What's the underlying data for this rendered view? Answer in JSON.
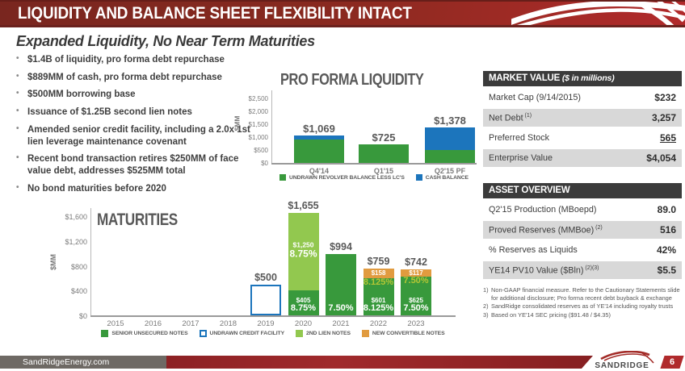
{
  "slide": {
    "title": "LIQUIDITY AND BALANCE SHEET FLEXIBILITY INTACT",
    "subtitle": "Expanded Liquidity, No Near Term Maturities",
    "footer_url": "SandRidgeEnergy.com",
    "logo_text": "SandRidge",
    "page_number": "6"
  },
  "colors": {
    "senior_green": "#38993c",
    "second_lien_green": "#92c84f",
    "cash_blue": "#1c75bc",
    "convertible_orange": "#e19b3f",
    "rate_yellow": "#b5c635",
    "banner_maroon": "#7c2824",
    "accent_red": "#b12a2b",
    "outline_blue": "#1c75bc"
  },
  "bullets": [
    "$1.4B of liquidity, pro forma debt repurchase",
    "$889MM of cash, pro forma debt repurchase",
    "$500MM borrowing base",
    "Issuance of $1.25B second lien notes",
    "Amended senior credit facility, including a 2.0x 1st lien leverage maintenance covenant",
    "Recent bond transaction retires $250MM of face value debt, addresses $525MM total",
    "No bond maturities before 2020"
  ],
  "chart_data": [
    {
      "type": "bar",
      "stacked": true,
      "title": "PRO FORMA LIQUIDITY",
      "ylabel": "$MM",
      "ylim": [
        0,
        2500
      ],
      "yticks": [
        "$0",
        "$500",
        "$1,000",
        "$1,500",
        "$2,000",
        "$2,500"
      ],
      "grid": false,
      "legend_position": "bottom",
      "categories": [
        "Q4'14",
        "Q1'15",
        "Q2'15 PF"
      ],
      "totals": [
        "$1,069",
        "$725",
        "$1,378"
      ],
      "series": [
        {
          "name": "UNDRAWN REVOLVER BALANCE LESS LC'S",
          "color": "#38993c",
          "values": [
            919,
            725,
            489
          ]
        },
        {
          "name": "CASH BALANCE",
          "color": "#1c75bc",
          "values": [
            150,
            0,
            889
          ]
        }
      ]
    },
    {
      "type": "bar",
      "stacked": true,
      "title": "MATURITIES",
      "ylabel": "$MM",
      "ylim": [
        0,
        1600
      ],
      "yticks": [
        "$0",
        "$400",
        "$800",
        "$1,200",
        "$1,600"
      ],
      "grid": false,
      "legend_position": "bottom",
      "categories": [
        "2015",
        "2016",
        "2017",
        "2018",
        "2019",
        "2020",
        "2021",
        "2022",
        "2023"
      ],
      "legend": [
        {
          "name": "SENIOR UNSECURED NOTES",
          "color": "#38993c",
          "style": "fill"
        },
        {
          "name": "UNDRAWN CREDIT FACILITY",
          "color": "#1c75bc",
          "style": "outline"
        },
        {
          "name": "2ND LIEN NOTES",
          "color": "#92c84f",
          "style": "fill"
        },
        {
          "name": "NEW CONVERTIBLE NOTES",
          "color": "#e19b3f",
          "style": "fill"
        }
      ],
      "bars": [
        {
          "year": "2019",
          "total_label": "$500",
          "segments": [
            {
              "series": "UNDRAWN CREDIT FACILITY",
              "value": 500,
              "style": "outline"
            }
          ]
        },
        {
          "year": "2020",
          "total_label": "$1,655",
          "segments": [
            {
              "series": "SENIOR UNSECURED NOTES",
              "value": 405,
              "label": "$405",
              "rate": "8.75%"
            },
            {
              "series": "2ND LIEN NOTES",
              "value": 1250,
              "label": "$1,250",
              "rate": "8.75%"
            }
          ]
        },
        {
          "year": "2021",
          "total_label": "$994",
          "segments": [
            {
              "series": "SENIOR UNSECURED NOTES",
              "value": 994,
              "rate": "7.50%"
            }
          ]
        },
        {
          "year": "2022",
          "total_label": "$759",
          "segments": [
            {
              "series": "SENIOR UNSECURED NOTES",
              "value": 601,
              "label": "$601",
              "rate": "8.125%"
            },
            {
              "series": "NEW CONVERTIBLE NOTES",
              "value": 158,
              "label": "$158",
              "rate": "8.125%"
            }
          ]
        },
        {
          "year": "2023",
          "total_label": "$742",
          "segments": [
            {
              "series": "SENIOR UNSECURED NOTES",
              "value": 625,
              "label": "$625",
              "rate": "7.50%"
            },
            {
              "series": "NEW CONVERTIBLE NOTES",
              "value": 117,
              "label": "$117",
              "rate": "7.50%"
            }
          ]
        }
      ]
    }
  ],
  "tables": {
    "market_value": {
      "title": "MARKET VALUE",
      "title_note": "($ in millions)",
      "rows": [
        {
          "label": "Market Cap (9/14/2015)",
          "value": "$232"
        },
        {
          "label": "Net Debt",
          "sup": "(1)",
          "value": "3,257",
          "shaded": true
        },
        {
          "label": "Preferred Stock",
          "value": "565",
          "underline": true
        },
        {
          "label": "Enterprise Value",
          "value": "$4,054",
          "shaded": true
        }
      ]
    },
    "asset_overview": {
      "title": "ASSET OVERVIEW",
      "rows": [
        {
          "label": "Q2'15 Production (MBoepd)",
          "value": "89.0"
        },
        {
          "label": "Proved Reserves (MMBoe)",
          "sup": "(2)",
          "value": "516",
          "shaded": true
        },
        {
          "label": "% Reserves as Liquids",
          "value": "42%"
        },
        {
          "label": "YE14 PV10 Value ($Bln)",
          "sup": "(2)(3)",
          "value": "$5.5",
          "shaded": true
        }
      ]
    }
  },
  "footnotes": [
    {
      "num": "1)",
      "text": "Non-GAAP financial measure. Refer to the Cautionary Statements slide for additional disclosure; Pro forma recent debt buyback & exchange"
    },
    {
      "num": "2)",
      "text": "SandRidge consolidated reserves as of YE'14 including royalty trusts"
    },
    {
      "num": "3)",
      "text": "Based on YE'14 SEC pricing ($91.48 / $4.35)"
    }
  ]
}
